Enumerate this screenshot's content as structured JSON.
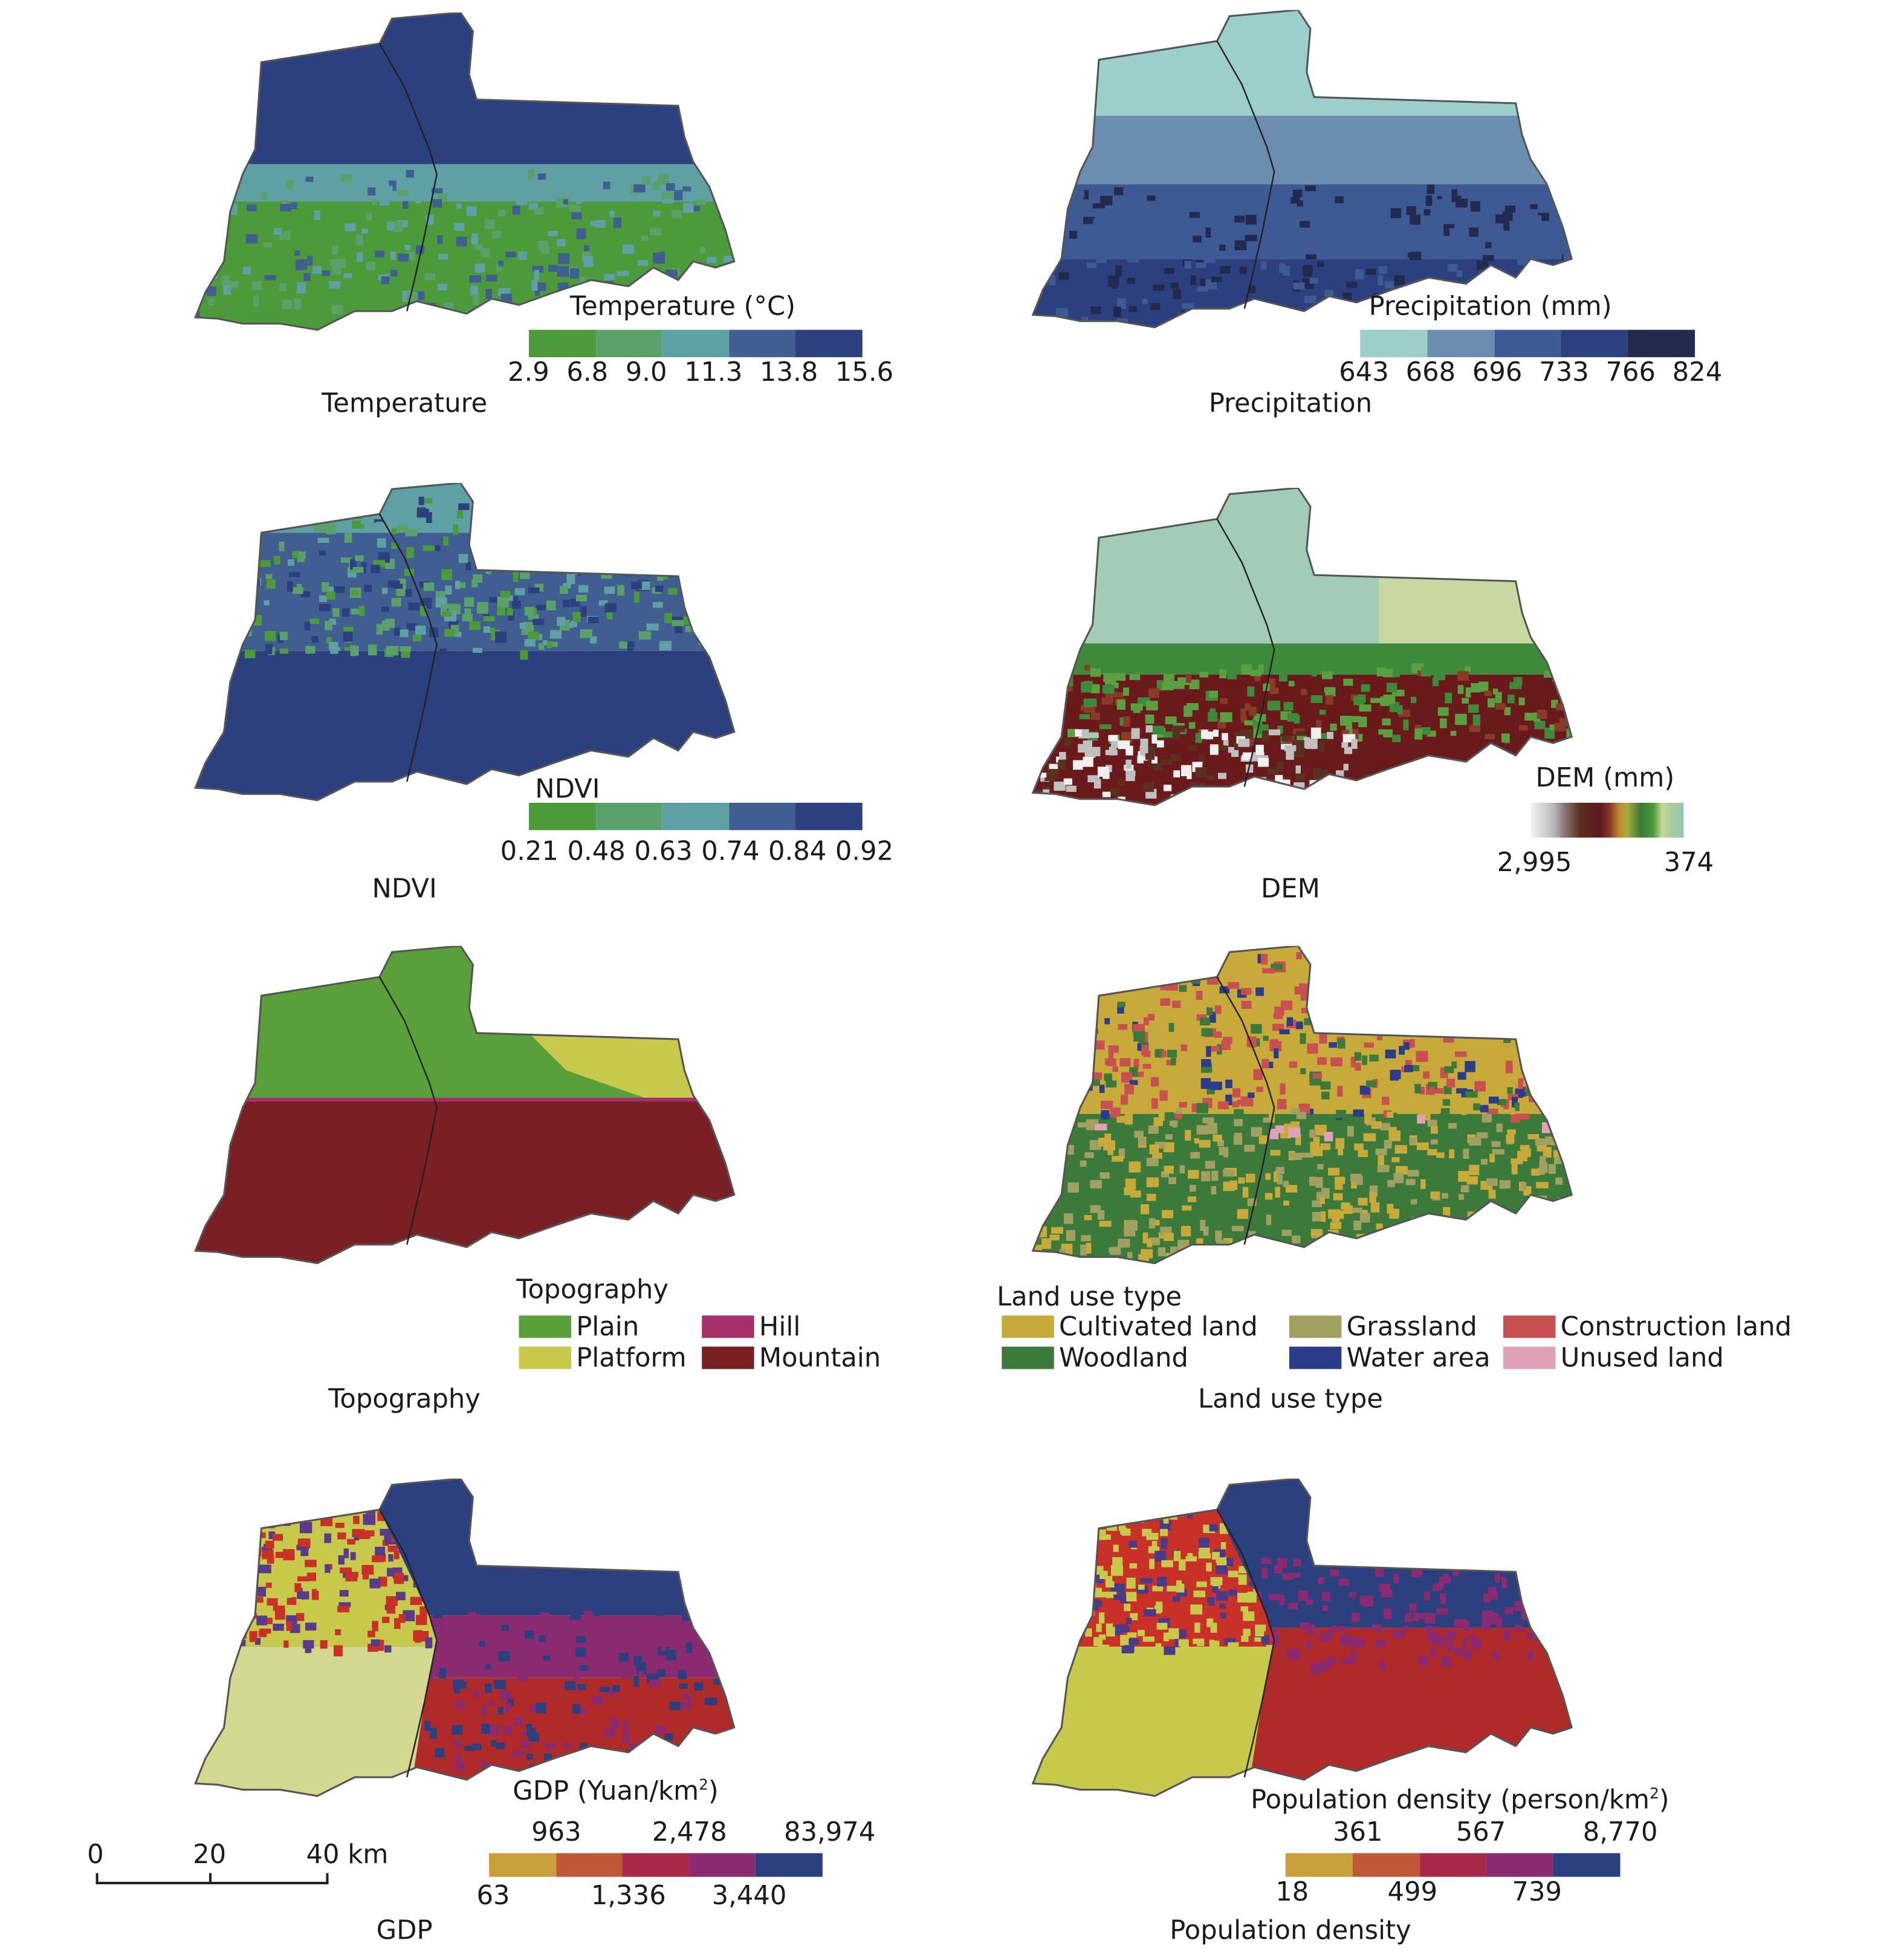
{
  "panels": {
    "temperature": {
      "caption": "Temperature",
      "legend_title": "Temperature (°C)",
      "ticks": [
        "2.9",
        "6.8",
        "9.0",
        "11.3",
        "13.8",
        "15.6"
      ],
      "colors": [
        "#4c9a3a",
        "#5aa06a",
        "#5ea0a4",
        "#405e92",
        "#2c3f7e"
      ]
    },
    "precipitation": {
      "caption": "Precipitation",
      "legend_title": "Precipitation (mm)",
      "ticks": [
        "643",
        "668",
        "696",
        "733",
        "766",
        "824"
      ],
      "colors": [
        "#9ccfcc",
        "#6a8db0",
        "#3d5a94",
        "#2c3f7e",
        "#232a50"
      ]
    },
    "ndvi": {
      "caption": "NDVI",
      "legend_title": "NDVI",
      "ticks": [
        "0.21",
        "0.48",
        "0.63",
        "0.74",
        "0.84",
        "0.92"
      ],
      "colors": [
        "#4c9a3a",
        "#5aa06a",
        "#5ea0a4",
        "#405e92",
        "#2c3f7e"
      ]
    },
    "dem": {
      "caption": "DEM",
      "legend_title": "DEM (mm)",
      "tick_high": "2,995",
      "tick_low": "374"
    },
    "topography": {
      "caption": "Topography",
      "legend_title": "Topography",
      "items": [
        {
          "label": "Plain",
          "color": "#5aa03a"
        },
        {
          "label": "Hill",
          "color": "#a8306a"
        },
        {
          "label": "Platform",
          "color": "#c7c94a"
        },
        {
          "label": "Mountain",
          "color": "#7a2024"
        }
      ]
    },
    "land_use": {
      "caption": "Land use type",
      "legend_title": "Land use type",
      "items": [
        {
          "label": "Cultivated land",
          "color": "#c8aa3a"
        },
        {
          "label": "Grassland",
          "color": "#a0a060"
        },
        {
          "label": "Construction land",
          "color": "#c85050"
        },
        {
          "label": "Woodland",
          "color": "#3b7a3a"
        },
        {
          "label": "Water area",
          "color": "#2a3c8a"
        },
        {
          "label": "Unused land",
          "color": "#e0a0b8"
        }
      ]
    },
    "gdp": {
      "caption": "GDP",
      "legend_title_main": "GDP (Yuan/km",
      "legend_title_sup": "2",
      "legend_title_end": ")",
      "ticks_top": [
        "963",
        "2,478",
        "83,974"
      ],
      "ticks_bottom": [
        "63",
        "1,336",
        "3,440"
      ],
      "colors": [
        "#c8a03a",
        "#c05838",
        "#a82848",
        "#8a2a70",
        "#2c4080"
      ]
    },
    "population": {
      "caption": "Population density",
      "legend_title_main": "Population density (person/km",
      "legend_title_sup": "2",
      "legend_title_end": ")",
      "ticks_top": [
        "361",
        "567",
        "8,770"
      ],
      "ticks_bottom": [
        "18",
        "499",
        "739"
      ],
      "colors": [
        "#c8a03a",
        "#c05838",
        "#a82848",
        "#8a2a70",
        "#2c4080"
      ]
    }
  },
  "scale_bar": {
    "ticks": [
      "0",
      "20",
      "40 km"
    ]
  }
}
